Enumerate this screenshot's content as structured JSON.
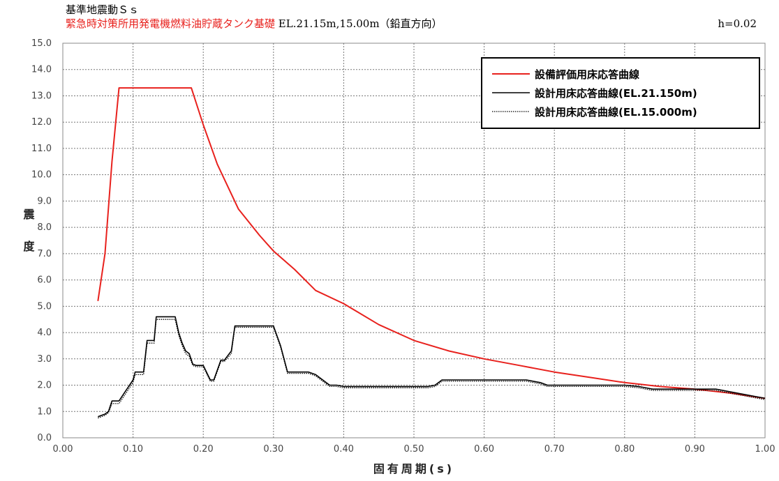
{
  "header": {
    "title": "基準地震動Ｓｓ",
    "subtitle_red": "緊急時対策所用発電機燃料油貯蔵タンク基礎",
    "subtitle_black": " EL.21.15m,15.00m（鉛直方向）",
    "damping": "h=0.02"
  },
  "chart_data": {
    "type": "line",
    "xlabel": "固有周期(s)",
    "ylabel": "震度",
    "xlim": [
      0.0,
      1.0
    ],
    "ylim": [
      0.0,
      15.0
    ],
    "x_ticks": [
      "0.00",
      "0.10",
      "0.20",
      "0.30",
      "0.40",
      "0.50",
      "0.60",
      "0.70",
      "0.80",
      "0.90",
      "1.00"
    ],
    "y_ticks": [
      "0.0",
      "1.0",
      "2.0",
      "3.0",
      "4.0",
      "5.0",
      "6.0",
      "7.0",
      "8.0",
      "9.0",
      "10.0",
      "11.0",
      "12.0",
      "13.0",
      "14.0",
      "15.0"
    ],
    "grid": true,
    "legend_position": "top-right",
    "series": [
      {
        "name": "設備評価用床応答曲線",
        "color": "#e8211d",
        "style": "solid",
        "x": [
          0.05,
          0.06,
          0.07,
          0.08,
          0.1,
          0.12,
          0.14,
          0.16,
          0.183,
          0.2,
          0.22,
          0.25,
          0.28,
          0.3,
          0.33,
          0.36,
          0.4,
          0.45,
          0.5,
          0.55,
          0.6,
          0.65,
          0.7,
          0.75,
          0.8,
          0.85,
          0.9,
          0.95,
          1.0
        ],
        "y": [
          5.2,
          7.0,
          10.5,
          13.3,
          13.3,
          13.3,
          13.3,
          13.3,
          13.3,
          11.9,
          10.4,
          8.7,
          7.7,
          7.1,
          6.4,
          5.6,
          5.1,
          4.3,
          3.7,
          3.3,
          3.0,
          2.75,
          2.5,
          2.3,
          2.1,
          1.95,
          1.85,
          1.7,
          1.5
        ]
      },
      {
        "name": "設計用床応答曲線(EL.21.150m)",
        "color": "#000000",
        "style": "solid",
        "x": [
          0.05,
          0.055,
          0.06,
          0.065,
          0.07,
          0.075,
          0.08,
          0.085,
          0.09,
          0.095,
          0.1,
          0.103,
          0.105,
          0.115,
          0.12,
          0.13,
          0.133,
          0.15,
          0.16,
          0.165,
          0.17,
          0.175,
          0.18,
          0.185,
          0.19,
          0.2,
          0.21,
          0.215,
          0.225,
          0.23,
          0.24,
          0.245,
          0.27,
          0.29,
          0.3,
          0.31,
          0.32,
          0.35,
          0.36,
          0.38,
          0.39,
          0.4,
          0.45,
          0.5,
          0.52,
          0.53,
          0.54,
          0.6,
          0.66,
          0.68,
          0.69,
          0.7,
          0.8,
          0.82,
          0.84,
          0.92,
          0.93,
          1.0
        ],
        "y": [
          0.8,
          0.85,
          0.9,
          1.0,
          1.4,
          1.4,
          1.4,
          1.6,
          1.8,
          2.0,
          2.2,
          2.5,
          2.5,
          2.5,
          3.7,
          3.7,
          4.6,
          4.6,
          4.6,
          4.0,
          3.6,
          3.3,
          3.2,
          2.8,
          2.75,
          2.75,
          2.2,
          2.2,
          2.95,
          2.95,
          3.3,
          4.25,
          4.25,
          4.25,
          4.25,
          3.5,
          2.5,
          2.5,
          2.4,
          2.0,
          2.0,
          1.95,
          1.95,
          1.95,
          1.95,
          2.0,
          2.2,
          2.2,
          2.2,
          2.1,
          2.0,
          2.0,
          2.0,
          1.95,
          1.85,
          1.85,
          1.85,
          1.5
        ]
      },
      {
        "name": "設計用床応答曲線(EL.15.000m)",
        "color": "#000000",
        "style": "dotted",
        "x": [
          0.05,
          0.055,
          0.06,
          0.065,
          0.07,
          0.075,
          0.08,
          0.085,
          0.09,
          0.095,
          0.1,
          0.103,
          0.105,
          0.115,
          0.12,
          0.13,
          0.133,
          0.15,
          0.16,
          0.165,
          0.17,
          0.175,
          0.18,
          0.185,
          0.19,
          0.2,
          0.21,
          0.215,
          0.225,
          0.23,
          0.24,
          0.245,
          0.27,
          0.29,
          0.3,
          0.31,
          0.32,
          0.35,
          0.36,
          0.38,
          0.39,
          0.4,
          0.45,
          0.5,
          0.52,
          0.53,
          0.54,
          0.6,
          0.66,
          0.68,
          0.69,
          0.7,
          0.8,
          0.82,
          0.84,
          0.92,
          0.93,
          1.0
        ],
        "y": [
          0.75,
          0.8,
          0.85,
          0.95,
          1.3,
          1.3,
          1.3,
          1.5,
          1.7,
          1.9,
          2.1,
          2.4,
          2.4,
          2.4,
          3.6,
          3.6,
          4.5,
          4.5,
          4.5,
          3.9,
          3.5,
          3.2,
          3.1,
          2.75,
          2.7,
          2.7,
          2.15,
          2.15,
          2.9,
          2.9,
          3.2,
          4.2,
          4.2,
          4.2,
          4.2,
          3.45,
          2.45,
          2.45,
          2.35,
          1.95,
          1.95,
          1.9,
          1.9,
          1.9,
          1.9,
          1.95,
          2.15,
          2.15,
          2.15,
          2.05,
          1.95,
          1.95,
          1.95,
          1.9,
          1.8,
          1.8,
          1.8,
          1.45
        ]
      }
    ]
  }
}
